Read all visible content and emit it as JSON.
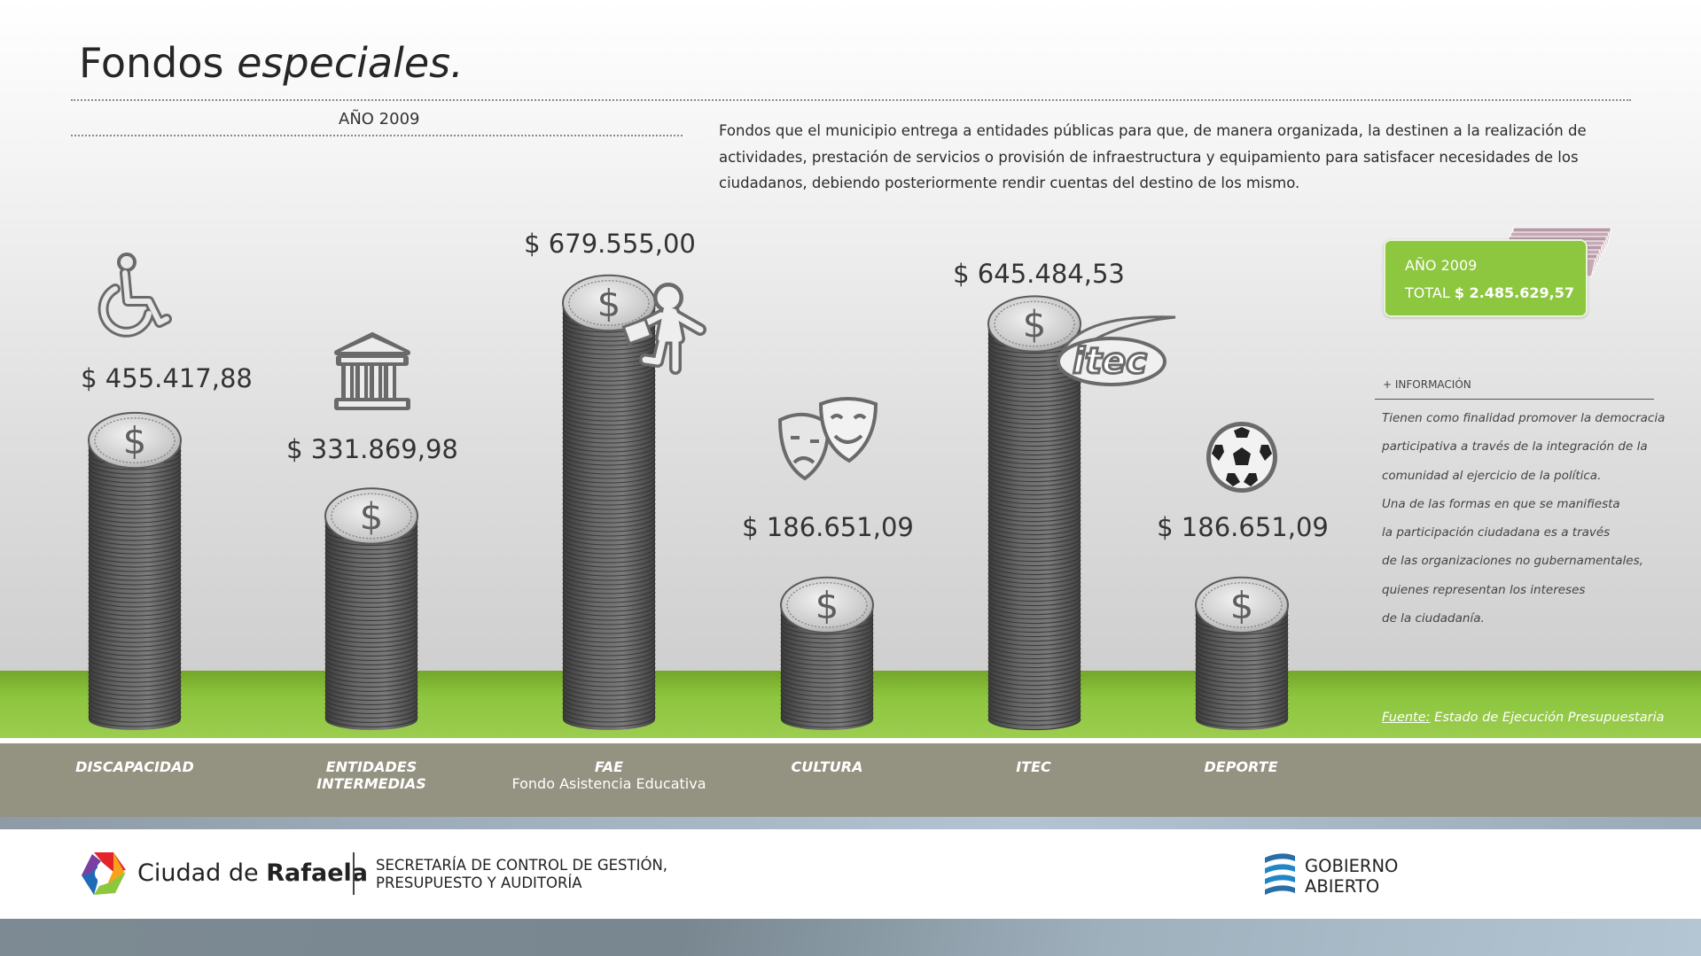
{
  "title": {
    "part1": "Fondos ",
    "part2": "especiales."
  },
  "year_label": "AÑO 2009",
  "description": "Fondos que el municipio entrega a entidades públicas para que, de manera organizada, la destinen a la realización de actividades, prestación de servicios o provisión de infraestructura y equipamiento para satisfacer necesidades de los ciudadanos, debiendo posteriormente rendir cuentas del destino de los mismo.",
  "chart_data": {
    "type": "bar",
    "categories": [
      "DISCAPACIDAD",
      "ENTIDADES INTERMEDIAS",
      "FAE",
      "CULTURA",
      "ITEC",
      "DEPORTE"
    ],
    "category_subtitles": [
      "",
      "",
      "Fondo Asistencia Educativa",
      "",
      "",
      ""
    ],
    "values": [
      455417.88,
      331869.98,
      679555.0,
      186651.09,
      645484.53,
      186651.09
    ],
    "value_labels": [
      "$ 455.417,88",
      "$ 331.869,98",
      "$ 679.555,00",
      "$ 186.651,09",
      "$ 645.484,53",
      "$ 186.651,09"
    ],
    "icons": [
      "wheelchair-icon",
      "institution-icon",
      "student-icon",
      "theater-masks-icon",
      "itec-logo-icon",
      "soccer-ball-icon"
    ],
    "coin_symbol": "$",
    "colors": {
      "coin": "#6e6e6e",
      "ground": "#8dc63f",
      "band": "#949280"
    }
  },
  "total_box": {
    "year": "AÑO 2009",
    "total_label": "TOTAL ",
    "total_value": "$ 2.485.629,57",
    "color": "#8dc63f"
  },
  "info": {
    "heading": "+ INFORMACIÓN",
    "lines": [
      "Tienen como finalidad promover la democracia",
      "participativa a través de la integración de la",
      "comunidad al ejercicio de la política.",
      "Una de las formas en que se manifiesta",
      "la participación ciudadana es a través",
      "de las organizaciones no gubernamentales,",
      "quienes representan los intereses",
      "de la ciudadanía."
    ]
  },
  "source": {
    "label": "Fuente:",
    "text": " Estado de Ejecución Presupuestaria"
  },
  "footer": {
    "city_prefix": "Ciudad de ",
    "city_name": "Rafaela",
    "secretaria": [
      "SECRETARÍA DE CONTROL DE GESTIÓN,",
      "PRESUPUESTO Y AUDITORÍA"
    ],
    "gobierno": [
      "GOBIERNO",
      "ABIERTO"
    ]
  }
}
